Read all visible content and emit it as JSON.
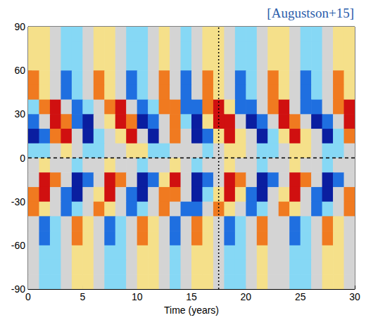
{
  "chart_data": {
    "type": "heatmap",
    "title": "[Augustson+15]",
    "x_label": "Time (years)",
    "xlim": [
      0,
      30
    ],
    "xticks": [
      0,
      5,
      10,
      15,
      20,
      25,
      30
    ],
    "ylim": [
      -90,
      90
    ],
    "yticks": [
      -90,
      -60,
      -30,
      0,
      30,
      60,
      90
    ],
    "grid": false,
    "x": [
      0.5,
      1.5,
      2.5,
      3.5,
      4.5,
      5.5,
      6.5,
      7.5,
      8.5,
      9.5,
      10.5,
      11.5,
      12.5,
      13.5,
      14.5,
      15.5,
      16.5,
      17.5,
      18.5,
      19.5,
      20.5,
      21.5,
      22.5,
      23.5,
      24.5,
      25.5,
      26.5,
      27.5,
      28.5,
      29.5
    ],
    "y": [
      85,
      75,
      65,
      55,
      45,
      35,
      25,
      15,
      5,
      -5,
      -15,
      -25,
      -35,
      -45,
      -55,
      -65,
      -75,
      -85
    ],
    "zlim": [
      -3,
      3
    ],
    "z": [
      [
        1,
        1,
        0,
        -1,
        -1,
        0,
        1,
        1,
        0,
        -1,
        -1,
        0,
        1,
        0,
        -1,
        0,
        1,
        1,
        0,
        -1,
        -1,
        0,
        1,
        1,
        0,
        -1,
        -1,
        0,
        1,
        1
      ],
      [
        1,
        1,
        0,
        -1,
        -1,
        0,
        1,
        1,
        0,
        -1,
        -1,
        0,
        1,
        0,
        -1,
        0,
        1,
        1,
        0,
        -1,
        -1,
        0,
        1,
        1,
        0,
        -1,
        -1,
        0,
        1,
        1
      ],
      [
        1,
        1,
        0,
        -1,
        -1,
        0,
        1,
        1,
        0,
        -1,
        -1,
        0,
        1,
        0,
        -1,
        0,
        1,
        1,
        0,
        -1,
        -1,
        0,
        1,
        1,
        0,
        -1,
        -1,
        0,
        1,
        1
      ],
      [
        2,
        1,
        0,
        -2,
        -1,
        0,
        2,
        1,
        0,
        -2,
        -1,
        0,
        2,
        0,
        -2,
        0,
        2,
        1,
        0,
        -2,
        -1,
        0,
        2,
        1,
        0,
        -2,
        -1,
        0,
        2,
        1
      ],
      [
        2,
        1,
        0,
        -2,
        -1,
        0,
        2,
        1,
        0,
        -2,
        -1,
        0,
        2,
        0,
        -2,
        0,
        2,
        1,
        0,
        -2,
        -1,
        0,
        2,
        1,
        0,
        -2,
        -1,
        0,
        2,
        1
      ],
      [
        -1,
        2,
        3,
        0,
        -2,
        -1,
        0,
        2,
        3,
        0,
        -2,
        -1,
        2,
        2,
        -2,
        -2,
        2,
        3,
        1,
        -2,
        -2,
        0,
        2,
        3,
        0,
        -2,
        -2,
        0,
        2,
        3
      ],
      [
        -2,
        0,
        3,
        2,
        -2,
        -3,
        0,
        1,
        3,
        2,
        -3,
        -2,
        0,
        2,
        -1,
        -3,
        1,
        3,
        3,
        0,
        -3,
        -2,
        0,
        3,
        2,
        0,
        -3,
        -2,
        0,
        3
      ],
      [
        -3,
        -2,
        2,
        3,
        0,
        -3,
        -1,
        0,
        1,
        3,
        0,
        -3,
        0,
        2,
        0,
        -3,
        -2,
        1,
        3,
        1,
        0,
        -3,
        -1,
        1,
        3,
        1,
        0,
        -3,
        -1,
        2
      ],
      [
        -1,
        -1,
        0,
        1,
        0,
        -1,
        -1,
        0,
        0,
        1,
        1,
        -1,
        -1,
        0,
        0,
        0,
        -1,
        0,
        1,
        1,
        0,
        -1,
        -1,
        0,
        1,
        1,
        0,
        -1,
        -1,
        0
      ],
      [
        0,
        1,
        0,
        0,
        -1,
        0,
        0,
        1,
        0,
        0,
        -1,
        0,
        0,
        1,
        0,
        -1,
        0,
        0,
        1,
        0,
        0,
        -1,
        0,
        0,
        1,
        0,
        0,
        -1,
        0,
        0
      ],
      [
        0,
        3,
        2,
        0,
        -3,
        -2,
        0,
        3,
        2,
        0,
        -3,
        -2,
        1,
        3,
        0,
        -3,
        -2,
        0,
        3,
        2,
        0,
        -3,
        -2,
        0,
        3,
        2,
        0,
        -3,
        -2,
        0
      ],
      [
        2,
        3,
        0,
        -2,
        -3,
        0,
        1,
        3,
        0,
        -2,
        -3,
        0,
        2,
        2,
        0,
        -3,
        -1,
        1,
        3,
        1,
        -2,
        -3,
        0,
        1,
        3,
        0,
        -2,
        -3,
        0,
        2
      ],
      [
        2,
        1,
        0,
        -2,
        -1,
        0,
        2,
        1,
        0,
        -2,
        -1,
        0,
        2,
        0,
        -2,
        -2,
        0,
        2,
        1,
        0,
        -2,
        -1,
        0,
        2,
        1,
        0,
        -2,
        -1,
        0,
        2
      ],
      [
        0,
        -2,
        -1,
        0,
        2,
        1,
        0,
        -2,
        -1,
        0,
        2,
        1,
        0,
        -2,
        0,
        2,
        1,
        0,
        -2,
        -1,
        0,
        2,
        0,
        0,
        -2,
        -1,
        0,
        2,
        1,
        0
      ],
      [
        0,
        -2,
        -1,
        0,
        2,
        1,
        0,
        -2,
        -1,
        0,
        2,
        1,
        0,
        -2,
        0,
        2,
        1,
        0,
        -2,
        -1,
        0,
        2,
        0,
        0,
        -2,
        -1,
        0,
        2,
        1,
        0
      ],
      [
        0,
        -1,
        -1,
        0,
        1,
        1,
        0,
        -1,
        -1,
        0,
        1,
        1,
        0,
        -1,
        0,
        1,
        1,
        0,
        -1,
        -1,
        0,
        1,
        0,
        0,
        -1,
        -1,
        0,
        1,
        1,
        0
      ],
      [
        0,
        -1,
        -1,
        0,
        1,
        1,
        0,
        -1,
        -1,
        0,
        1,
        1,
        0,
        -1,
        0,
        1,
        1,
        0,
        -1,
        -1,
        0,
        1,
        0,
        0,
        -1,
        -1,
        0,
        1,
        1,
        0
      ],
      [
        0,
        -1,
        -1,
        0,
        1,
        1,
        0,
        -1,
        -1,
        0,
        1,
        1,
        0,
        -1,
        0,
        1,
        1,
        0,
        -1,
        -1,
        0,
        1,
        0,
        0,
        -1,
        -1,
        0,
        1,
        1,
        0
      ]
    ],
    "vlines": [
      {
        "x": 17.5,
        "line_style": "dotted"
      }
    ],
    "hlines": [
      {
        "y": 0,
        "line_style": "dashed"
      }
    ]
  }
}
